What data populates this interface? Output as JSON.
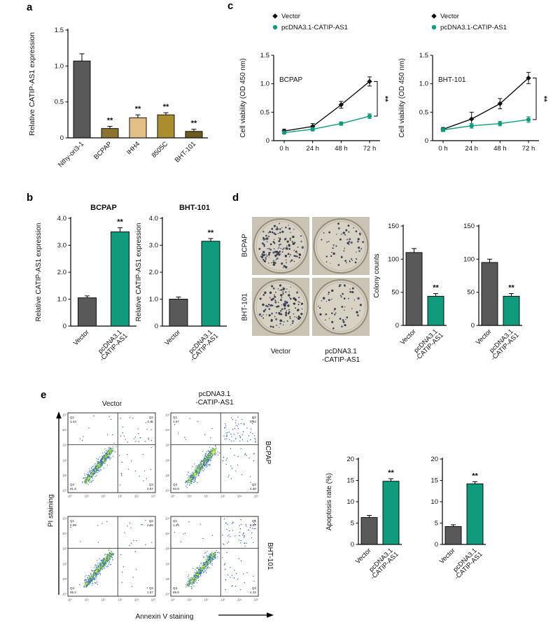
{
  "colors": {
    "gray_bar": "#595959",
    "teal": "#0e9c7c",
    "black": "#111111"
  },
  "panel_a": {
    "label": "a",
    "chart_data": {
      "type": "bar",
      "ylabel": "Relative CATIP-AS1 expression",
      "ylim": [
        0,
        1.5
      ],
      "ytick_labels": [
        "0",
        "0.5",
        "1.0",
        "1.5"
      ],
      "categories": [
        "Nthy-ori3-1",
        "BCPAP",
        "IHH4",
        "8505C",
        "BHT-101"
      ],
      "values": [
        1.07,
        0.13,
        0.28,
        0.32,
        0.09
      ],
      "errors": [
        0.1,
        0.03,
        0.04,
        0.03,
        0.03
      ],
      "sig": [
        "",
        "**",
        "**",
        "**",
        "**"
      ],
      "bar_colors": [
        "#595959",
        "#8a7430",
        "#e2bf86",
        "#a98d2f",
        "#6b5c1e"
      ]
    }
  },
  "panel_b": {
    "label": "b",
    "chart_data": [
      {
        "type": "bar",
        "title": "BCPAP",
        "ylabel": "Relative CATIP-AS1 expression",
        "ylim": [
          0,
          4
        ],
        "ytick_labels": [
          "0",
          "1.0",
          "2.0",
          "3.0",
          "4.0"
        ],
        "categories": [
          "Vector",
          "pcDNA3.1\n-CATIP-AS1"
        ],
        "values": [
          1.05,
          3.5
        ],
        "errors": [
          0.07,
          0.15
        ],
        "sig": [
          "",
          "**"
        ],
        "bar_colors": [
          "#595959",
          "#0e9c7c"
        ]
      },
      {
        "type": "bar",
        "title": "BHT-101",
        "ylabel": "Relative CATIP-AS1 expression",
        "ylim": [
          0,
          4
        ],
        "ytick_labels": [
          "0",
          "1.0",
          "2.0",
          "3.0",
          "4.0"
        ],
        "categories": [
          "Vector",
          "pcDNA3.1\n-CATIP-AS1"
        ],
        "values": [
          1.0,
          3.15
        ],
        "errors": [
          0.08,
          0.1
        ],
        "sig": [
          "",
          "**"
        ],
        "bar_colors": [
          "#595959",
          "#0e9c7c"
        ]
      }
    ]
  },
  "panel_c": {
    "label": "c",
    "chart_data": [
      {
        "type": "line",
        "inside_label": "BCPAP",
        "ylabel": "Cell viability (OD 450 nm)",
        "ylim": [
          0,
          1.5
        ],
        "ytick_labels": [
          "0",
          "0.5",
          "1.0",
          "1.5"
        ],
        "x_categories": [
          "0 h",
          "24 h",
          "48 h",
          "72 h"
        ],
        "series": [
          {
            "name": "Vector",
            "color": "#111111",
            "marker": "diamond",
            "values": [
              0.17,
              0.25,
              0.63,
              1.04
            ],
            "errors": [
              0.03,
              0.05,
              0.06,
              0.08
            ]
          },
          {
            "name": "pcDNA3.1-CATIP-AS1",
            "color": "#0e9c7c",
            "marker": "circle",
            "values": [
              0.14,
              0.2,
              0.3,
              0.43
            ],
            "errors": [
              0.02,
              0.03,
              0.03,
              0.04
            ]
          }
        ],
        "sig": "**"
      },
      {
        "type": "line",
        "inside_label": "BHT-101",
        "ylabel": "Cell viability (OD 450 nm)",
        "ylim": [
          0,
          1.5
        ],
        "ytick_labels": [
          "0",
          "0.5",
          "1.0",
          "1.5"
        ],
        "x_categories": [
          "0 h",
          "24 h",
          "48 h",
          "72 h"
        ],
        "series": [
          {
            "name": "Vector",
            "color": "#111111",
            "marker": "diamond",
            "values": [
              0.2,
              0.38,
              0.65,
              1.1
            ],
            "errors": [
              0.03,
              0.12,
              0.09,
              0.1
            ]
          },
          {
            "name": "pcDNA3.1-CATIP-AS1",
            "color": "#0e9c7c",
            "marker": "circle",
            "values": [
              0.19,
              0.26,
              0.3,
              0.37
            ],
            "errors": [
              0.03,
              0.04,
              0.04,
              0.05
            ]
          }
        ],
        "sig": "**"
      }
    ]
  },
  "panel_d": {
    "label": "d",
    "dish_grid": {
      "row_labels": [
        "BCPAP",
        "BHT-101"
      ],
      "col_labels": [
        "Vector",
        "pcDNA3.1\n-CATIP-AS1"
      ],
      "colony_dot_counts": [
        [
          150,
          55
        ],
        [
          125,
          52
        ]
      ]
    },
    "chart_data": [
      {
        "type": "bar",
        "ylabel": "Colony counts",
        "ylim": [
          0,
          150
        ],
        "ytick_labels": [
          "0",
          "50",
          "100",
          "150"
        ],
        "categories": [
          "Vector",
          "pcDNA3.1\n-CATIP-AS1"
        ],
        "values": [
          110,
          44
        ],
        "errors": [
          6,
          4
        ],
        "sig": [
          "",
          "**"
        ],
        "bar_colors": [
          "#595959",
          "#0e9c7c"
        ]
      },
      {
        "type": "bar",
        "ylabel": "",
        "ylim": [
          0,
          150
        ],
        "ytick_labels": [
          "0",
          "50",
          "100",
          "150"
        ],
        "categories": [
          "Vector",
          "pcDNA3.1\n-CATIP-AS1"
        ],
        "values": [
          95,
          44
        ],
        "errors": [
          5,
          4
        ],
        "sig": [
          "",
          "**"
        ],
        "bar_colors": [
          "#595959",
          "#0e9c7c"
        ]
      }
    ]
  },
  "panel_e": {
    "label": "e",
    "col_labels": [
      "Vector",
      "pcDNA3.1\n-CATIP-AS1"
    ],
    "row_labels": [
      "BCPAP",
      "BHT-101"
    ],
    "xlabel": "Annexin V staining",
    "ylabel": "PI staining",
    "axis_tick_labels": [
      "10⁰",
      "10¹",
      "10²",
      "10³",
      "10⁴",
      "10⁵"
    ],
    "flow_plots": [
      {
        "cell_line": "BCPAP",
        "condition": "Vector",
        "quadrants": {
          "Q1": "1.44",
          "Q2": "4.11",
          "Q3": "2.87",
          "Q4": "91.6"
        },
        "seed": 7
      },
      {
        "cell_line": "BCPAP",
        "condition": "pcDNA3.1-CATIP-AS1",
        "quadrants": {
          "Q1": "1.57",
          "Q2": "9.92",
          "Q3": "4.50",
          "Q4": "84.0"
        },
        "seed": 13
      },
      {
        "cell_line": "BHT-101",
        "condition": "Vector",
        "quadrants": {
          "Q1": "0.99",
          "Q2": "2.26",
          "Q3": "1.57",
          "Q4": "95.2"
        },
        "seed": 23
      },
      {
        "cell_line": "BHT-101",
        "condition": "pcDNA3.1-CATIP-AS1",
        "quadrants": {
          "Q1": "1.44",
          "Q2": "8.87",
          "Q3": "4.33",
          "Q4": "85.6"
        },
        "seed": 31
      }
    ],
    "chart_data": [
      {
        "type": "bar",
        "ylabel": "Apoptosis rate (%)",
        "ylim": [
          0,
          20
        ],
        "ytick_labels": [
          "0",
          "5",
          "10",
          "15",
          "20"
        ],
        "categories": [
          "Vector",
          "pcDNA3.1\n-CATIP-AS1"
        ],
        "values": [
          6.3,
          14.8
        ],
        "errors": [
          0.5,
          0.6
        ],
        "sig": [
          "",
          "**"
        ],
        "bar_colors": [
          "#595959",
          "#0e9c7c"
        ]
      },
      {
        "type": "bar",
        "ylabel": "",
        "ylim": [
          0,
          20
        ],
        "ytick_labels": [
          "0",
          "5",
          "10",
          "15",
          "20"
        ],
        "categories": [
          "Vector",
          "pcDNA3.1\n-CATIP-AS1"
        ],
        "values": [
          4.2,
          14.2
        ],
        "errors": [
          0.4,
          0.5
        ],
        "sig": [
          "",
          "**"
        ],
        "bar_colors": [
          "#595959",
          "#0e9c7c"
        ]
      }
    ]
  }
}
